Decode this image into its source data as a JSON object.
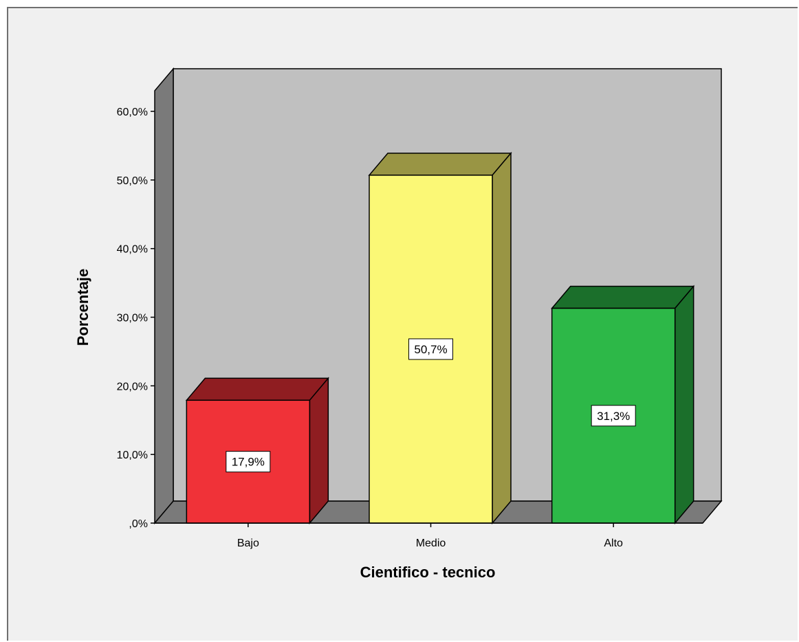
{
  "chart_data": {
    "type": "bar",
    "categories": [
      "Bajo",
      "Medio",
      "Alto"
    ],
    "values": [
      17.9,
      50.7,
      31.3
    ],
    "data_labels": [
      "17,9%",
      "50,7%",
      "31,3%"
    ],
    "xlabel": "Cientifico - tecnico",
    "ylabel": "Porcentaje",
    "ylim": [
      0,
      60
    ],
    "yticks": [
      0,
      10,
      20,
      30,
      40,
      50,
      60
    ],
    "ytick_labels": [
      ",0%",
      "10,0%",
      "20,0%",
      "30,0%",
      "40,0%",
      "50,0%",
      "60,0%"
    ],
    "grid": false,
    "style": "3d",
    "colors": {
      "bars": [
        "#f03238",
        "#fbf876",
        "#2db848"
      ],
      "bar_sides": [
        "#8f1d21",
        "#999544",
        "#1b6f2b"
      ],
      "back_wall": "#c0c0c0",
      "side_wall": "#7a7a7a",
      "floor": "#7a7a7a",
      "background": "#f0f0f0"
    }
  }
}
